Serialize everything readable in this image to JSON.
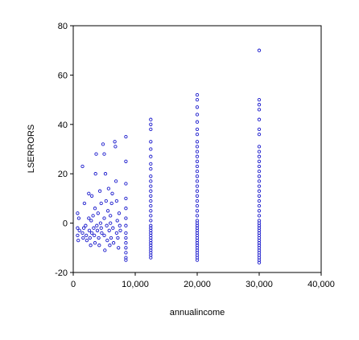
{
  "chart_data": {
    "type": "scatter",
    "xlabel": "annualincome",
    "ylabel": "LSERRORS",
    "xlim": [
      0,
      40000
    ],
    "ylim": [
      -20,
      80
    ],
    "xticks": [
      0,
      10000,
      20000,
      30000,
      40000
    ],
    "xtick_labels": [
      "0",
      "10,000",
      "20,000",
      "30,000",
      "40,000"
    ],
    "yticks": [
      -20,
      0,
      20,
      40,
      60,
      80
    ],
    "ytick_labels": [
      "-20",
      "0",
      "20",
      "40",
      "60",
      "80"
    ],
    "grid": false,
    "legend": "none",
    "marker": "hollow-circle",
    "marker_color": "#1a1acc",
    "points": [
      [
        700,
        4
      ],
      [
        700,
        -2
      ],
      [
        700,
        -5
      ],
      [
        800,
        -7
      ],
      [
        900,
        2
      ],
      [
        1000,
        -3
      ],
      [
        1500,
        23
      ],
      [
        1500,
        -4
      ],
      [
        1600,
        -6
      ],
      [
        1700,
        -2
      ],
      [
        1800,
        8
      ],
      [
        2000,
        -1
      ],
      [
        2100,
        -5
      ],
      [
        2200,
        -7
      ],
      [
        2500,
        12
      ],
      [
        2500,
        2
      ],
      [
        2600,
        -3
      ],
      [
        2700,
        -6
      ],
      [
        2800,
        -9
      ],
      [
        2900,
        1
      ],
      [
        3000,
        -4
      ],
      [
        3000,
        11
      ],
      [
        3200,
        3
      ],
      [
        3300,
        -2
      ],
      [
        3400,
        -5
      ],
      [
        3500,
        -8
      ],
      [
        3500,
        6
      ],
      [
        3600,
        20
      ],
      [
        3700,
        28
      ],
      [
        3800,
        -1
      ],
      [
        3900,
        -3
      ],
      [
        4000,
        4
      ],
      [
        4100,
        -6
      ],
      [
        4200,
        -9
      ],
      [
        4300,
        13
      ],
      [
        4400,
        0
      ],
      [
        4500,
        -2
      ],
      [
        4500,
        8
      ],
      [
        4600,
        -4
      ],
      [
        4800,
        32
      ],
      [
        5000,
        28
      ],
      [
        5000,
        2
      ],
      [
        5000,
        -5
      ],
      [
        5100,
        -11
      ],
      [
        5200,
        20
      ],
      [
        5300,
        9
      ],
      [
        5400,
        -1
      ],
      [
        5500,
        -7
      ],
      [
        5600,
        5
      ],
      [
        5700,
        14
      ],
      [
        5800,
        -3
      ],
      [
        5900,
        -9
      ],
      [
        6000,
        0
      ],
      [
        6000,
        3
      ],
      [
        6100,
        -6
      ],
      [
        6200,
        8
      ],
      [
        6300,
        12
      ],
      [
        6400,
        -2
      ],
      [
        6500,
        -8
      ],
      [
        6700,
        33
      ],
      [
        6800,
        31
      ],
      [
        6900,
        17
      ],
      [
        7000,
        9
      ],
      [
        7000,
        -4
      ],
      [
        7100,
        1
      ],
      [
        7200,
        -6
      ],
      [
        7300,
        -10
      ],
      [
        7400,
        4
      ],
      [
        7500,
        -1
      ],
      [
        7600,
        -3
      ],
      [
        8500,
        35
      ],
      [
        8500,
        25
      ],
      [
        8500,
        16
      ],
      [
        8500,
        10
      ],
      [
        8500,
        6
      ],
      [
        8500,
        2
      ],
      [
        8500,
        -1
      ],
      [
        8500,
        -4
      ],
      [
        8500,
        -6
      ],
      [
        8500,
        -8
      ],
      [
        8500,
        -10
      ],
      [
        8500,
        -12
      ],
      [
        8500,
        -14
      ],
      [
        8500,
        -15
      ],
      [
        12500,
        42
      ],
      [
        12500,
        40
      ],
      [
        12500,
        38
      ],
      [
        12500,
        33
      ],
      [
        12500,
        30
      ],
      [
        12500,
        27
      ],
      [
        12500,
        24
      ],
      [
        12500,
        22
      ],
      [
        12500,
        19
      ],
      [
        12500,
        17
      ],
      [
        12500,
        15
      ],
      [
        12500,
        13
      ],
      [
        12500,
        11
      ],
      [
        12500,
        9
      ],
      [
        12500,
        7
      ],
      [
        12500,
        5
      ],
      [
        12500,
        3
      ],
      [
        12500,
        1
      ],
      [
        12500,
        -1
      ],
      [
        12500,
        -2
      ],
      [
        12500,
        -3
      ],
      [
        12500,
        -4
      ],
      [
        12500,
        -5
      ],
      [
        12500,
        -6
      ],
      [
        12500,
        -7
      ],
      [
        12500,
        -8
      ],
      [
        12500,
        -9
      ],
      [
        12500,
        -10
      ],
      [
        12500,
        -11
      ],
      [
        12500,
        -12
      ],
      [
        12500,
        -13
      ],
      [
        12500,
        -14
      ],
      [
        20000,
        52
      ],
      [
        20000,
        50
      ],
      [
        20000,
        47
      ],
      [
        20000,
        44
      ],
      [
        20000,
        41
      ],
      [
        20000,
        38
      ],
      [
        20000,
        36
      ],
      [
        20000,
        33
      ],
      [
        20000,
        31
      ],
      [
        20000,
        29
      ],
      [
        20000,
        27
      ],
      [
        20000,
        25
      ],
      [
        20000,
        23
      ],
      [
        20000,
        21
      ],
      [
        20000,
        19
      ],
      [
        20000,
        17
      ],
      [
        20000,
        15
      ],
      [
        20000,
        13
      ],
      [
        20000,
        11
      ],
      [
        20000,
        9
      ],
      [
        20000,
        7
      ],
      [
        20000,
        5
      ],
      [
        20000,
        3
      ],
      [
        20000,
        1
      ],
      [
        20000,
        0
      ],
      [
        20000,
        -1
      ],
      [
        20000,
        -2
      ],
      [
        20000,
        -3
      ],
      [
        20000,
        -4
      ],
      [
        20000,
        -5
      ],
      [
        20000,
        -6
      ],
      [
        20000,
        -7
      ],
      [
        20000,
        -8
      ],
      [
        20000,
        -9
      ],
      [
        20000,
        -10
      ],
      [
        20000,
        -11
      ],
      [
        20000,
        -12
      ],
      [
        20000,
        -13
      ],
      [
        20000,
        -14
      ],
      [
        20000,
        -15
      ],
      [
        30000,
        70
      ],
      [
        30000,
        50
      ],
      [
        30000,
        48
      ],
      [
        30000,
        46
      ],
      [
        30000,
        42
      ],
      [
        30000,
        38
      ],
      [
        30000,
        36
      ],
      [
        30000,
        31
      ],
      [
        30000,
        29
      ],
      [
        30000,
        27
      ],
      [
        30000,
        25
      ],
      [
        30000,
        23
      ],
      [
        30000,
        21
      ],
      [
        30000,
        19
      ],
      [
        30000,
        17
      ],
      [
        30000,
        15
      ],
      [
        30000,
        13
      ],
      [
        30000,
        11
      ],
      [
        30000,
        9
      ],
      [
        30000,
        7
      ],
      [
        30000,
        5
      ],
      [
        30000,
        3
      ],
      [
        30000,
        1
      ],
      [
        30000,
        0
      ],
      [
        30000,
        -1
      ],
      [
        30000,
        -2
      ],
      [
        30000,
        -3
      ],
      [
        30000,
        -4
      ],
      [
        30000,
        -5
      ],
      [
        30000,
        -6
      ],
      [
        30000,
        -7
      ],
      [
        30000,
        -8
      ],
      [
        30000,
        -9
      ],
      [
        30000,
        -10
      ],
      [
        30000,
        -11
      ],
      [
        30000,
        -12
      ],
      [
        30000,
        -13
      ],
      [
        30000,
        -14
      ],
      [
        30000,
        -15
      ],
      [
        30000,
        -16
      ]
    ]
  }
}
